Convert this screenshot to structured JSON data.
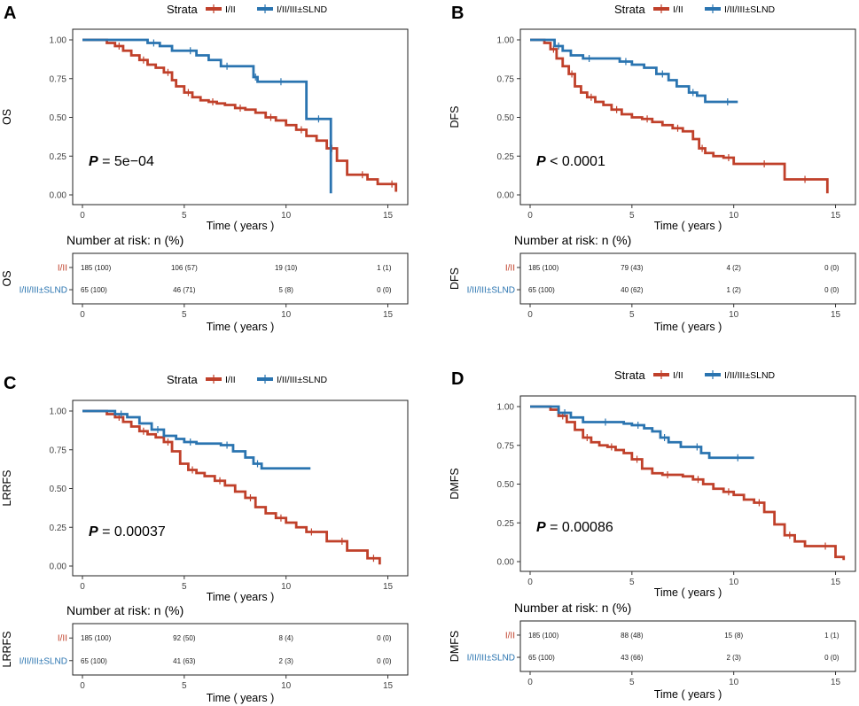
{
  "figure": {
    "series_colors": {
      "I/II": "#c0402a",
      "I/II/III±SLND": "#2a74b0"
    },
    "legend_title": "Strata",
    "x_ticks": [
      0,
      5,
      10,
      15
    ],
    "y_ticks": [
      "0.00",
      "0.25",
      "0.50",
      "0.75",
      "1.00"
    ],
    "risk_title": "Number at risk: n (%)"
  },
  "chart_data": [
    {
      "panel": "A",
      "type": "line",
      "ylabel": "OS",
      "xlabel": "Time ( years )",
      "xlim": [
        0,
        15.5
      ],
      "ylim": [
        0,
        1
      ],
      "legend": [
        "I/II",
        "I/II/III±SLND"
      ],
      "p_label": "P",
      "p_value": " = 5e−04",
      "series": [
        {
          "name": "I/II",
          "x": [
            0,
            1.2,
            1.6,
            2.0,
            2.4,
            2.8,
            3.2,
            3.6,
            4.0,
            4.4,
            4.6,
            5.0,
            5.4,
            5.8,
            6.2,
            6.6,
            7.0,
            7.5,
            8.0,
            8.5,
            9.0,
            9.5,
            10.0,
            10.5,
            11.0,
            11.5,
            12.0,
            12.5,
            13.0,
            13.5,
            14.0,
            14.5,
            15.0,
            15.4
          ],
          "y": [
            1.0,
            0.98,
            0.96,
            0.93,
            0.9,
            0.87,
            0.84,
            0.82,
            0.79,
            0.74,
            0.7,
            0.66,
            0.63,
            0.61,
            0.6,
            0.59,
            0.58,
            0.56,
            0.55,
            0.53,
            0.5,
            0.48,
            0.45,
            0.42,
            0.38,
            0.35,
            0.3,
            0.22,
            0.13,
            0.13,
            0.1,
            0.07,
            0.07,
            0.02
          ]
        },
        {
          "name": "I/II/III±SLND",
          "x": [
            0,
            2.6,
            3.2,
            3.8,
            4.4,
            5.0,
            5.6,
            6.2,
            6.8,
            7.4,
            8.0,
            8.4,
            8.6,
            9.0,
            9.5,
            10.0,
            10.5,
            11.0,
            12.2
          ],
          "y": [
            1.0,
            1.0,
            0.98,
            0.96,
            0.93,
            0.93,
            0.9,
            0.87,
            0.83,
            0.83,
            0.83,
            0.76,
            0.73,
            0.73,
            0.73,
            0.73,
            0.73,
            0.49,
            0.01
          ]
        }
      ],
      "risk_table": {
        "label": "OS",
        "rows": [
          {
            "name": "I/II",
            "values": [
              "185 (100)",
              "106 (57)",
              "19 (10)",
              "1 (1)"
            ]
          },
          {
            "name": "I/II/III±SLND",
            "values": [
              "65 (100)",
              "46 (71)",
              "5 (8)",
              "0 (0)"
            ]
          }
        ]
      }
    },
    {
      "panel": "B",
      "type": "line",
      "ylabel": "DFS",
      "xlabel": "Time ( years )",
      "xlim": [
        0,
        15.5
      ],
      "ylim": [
        0,
        1
      ],
      "legend": [
        "I/II",
        "I/II/III±SLND"
      ],
      "p_label": "P",
      "p_value": " < 0.0001",
      "series": [
        {
          "name": "I/II",
          "x": [
            0,
            0.7,
            1.0,
            1.3,
            1.6,
            1.9,
            2.2,
            2.5,
            2.8,
            3.2,
            3.6,
            4.0,
            4.5,
            5.0,
            5.5,
            6.0,
            6.5,
            7.0,
            7.5,
            8.0,
            8.3,
            8.6,
            9.0,
            9.5,
            10.0,
            10.5,
            11.0,
            12.0,
            12.5,
            13.0,
            14.0,
            14.6
          ],
          "y": [
            1.0,
            0.98,
            0.94,
            0.88,
            0.83,
            0.78,
            0.7,
            0.66,
            0.63,
            0.6,
            0.58,
            0.55,
            0.52,
            0.5,
            0.49,
            0.47,
            0.45,
            0.43,
            0.41,
            0.36,
            0.3,
            0.27,
            0.25,
            0.24,
            0.2,
            0.2,
            0.2,
            0.2,
            0.1,
            0.1,
            0.1,
            0.01
          ]
        },
        {
          "name": "I/II/III±SLND",
          "x": [
            0,
            0.8,
            1.2,
            1.6,
            2.0,
            2.6,
            3.2,
            3.8,
            4.4,
            5.0,
            5.6,
            6.2,
            6.8,
            7.2,
            7.8,
            8.2,
            8.6,
            9.2,
            10.2
          ],
          "y": [
            1.0,
            1.0,
            0.96,
            0.93,
            0.9,
            0.88,
            0.88,
            0.88,
            0.86,
            0.84,
            0.82,
            0.78,
            0.74,
            0.7,
            0.66,
            0.64,
            0.6,
            0.6,
            0.6
          ]
        }
      ],
      "risk_table": {
        "label": "DFS",
        "rows": [
          {
            "name": "I/II",
            "values": [
              "185 (100)",
              "79 (43)",
              "4 (2)",
              "0 (0)"
            ]
          },
          {
            "name": "I/II/III±SLND",
            "values": [
              "65 (100)",
              "40 (62)",
              "1 (2)",
              "0 (0)"
            ]
          }
        ]
      }
    },
    {
      "panel": "C",
      "type": "line",
      "ylabel": "LRRFS",
      "xlabel": "Time ( years )",
      "xlim": [
        0,
        15.5
      ],
      "ylim": [
        0,
        1
      ],
      "legend": [
        "I/II",
        "I/II/III±SLND"
      ],
      "p_label": "P",
      "p_value": " = 0.00037",
      "series": [
        {
          "name": "I/II",
          "x": [
            0,
            1.2,
            1.6,
            2.0,
            2.4,
            2.8,
            3.2,
            3.6,
            4.0,
            4.4,
            4.8,
            5.2,
            5.6,
            6.0,
            6.5,
            7.0,
            7.5,
            8.0,
            8.5,
            9.0,
            9.5,
            10.0,
            10.5,
            11.0,
            11.5,
            12.0,
            12.5,
            13.0,
            13.5,
            14.0,
            14.6
          ],
          "y": [
            1.0,
            0.98,
            0.96,
            0.93,
            0.9,
            0.87,
            0.85,
            0.83,
            0.8,
            0.74,
            0.66,
            0.62,
            0.6,
            0.58,
            0.55,
            0.52,
            0.48,
            0.44,
            0.38,
            0.34,
            0.31,
            0.28,
            0.25,
            0.22,
            0.22,
            0.16,
            0.16,
            0.1,
            0.1,
            0.05,
            0.01
          ]
        },
        {
          "name": "I/II/III±SLND",
          "x": [
            0,
            1.0,
            1.6,
            2.2,
            2.8,
            3.4,
            4.0,
            4.6,
            5.0,
            5.6,
            6.2,
            6.8,
            7.4,
            8.0,
            8.4,
            8.8,
            9.4,
            11.2
          ],
          "y": [
            1.0,
            1.0,
            0.98,
            0.96,
            0.92,
            0.88,
            0.84,
            0.82,
            0.8,
            0.79,
            0.79,
            0.78,
            0.74,
            0.7,
            0.66,
            0.63,
            0.63,
            0.63
          ]
        }
      ],
      "risk_table": {
        "label": "LRRFS",
        "rows": [
          {
            "name": "I/II",
            "values": [
              "185 (100)",
              "92 (50)",
              "8 (4)",
              "0 (0)"
            ]
          },
          {
            "name": "I/II/III±SLND",
            "values": [
              "65 (100)",
              "41 (63)",
              "2 (3)",
              "0 (0)"
            ]
          }
        ]
      }
    },
    {
      "panel": "D",
      "type": "line",
      "ylabel": "DMFS",
      "xlabel": "Time ( years )",
      "xlim": [
        0,
        15.5
      ],
      "ylim": [
        0,
        1
      ],
      "legend": [
        "I/II",
        "I/II/III±SLND"
      ],
      "p_label": "P",
      "p_value": " = 0.00086",
      "series": [
        {
          "name": "I/II",
          "x": [
            0,
            1.0,
            1.4,
            1.8,
            2.2,
            2.6,
            3.0,
            3.4,
            3.8,
            4.2,
            4.6,
            5.0,
            5.5,
            6.0,
            6.5,
            7.0,
            7.5,
            8.0,
            8.5,
            9.0,
            9.5,
            10.0,
            10.5,
            11.0,
            11.5,
            12.0,
            12.5,
            13.0,
            13.5,
            14.0,
            15.0,
            15.4
          ],
          "y": [
            1.0,
            0.98,
            0.94,
            0.9,
            0.85,
            0.8,
            0.77,
            0.75,
            0.74,
            0.72,
            0.7,
            0.66,
            0.6,
            0.57,
            0.56,
            0.56,
            0.55,
            0.53,
            0.5,
            0.47,
            0.45,
            0.43,
            0.4,
            0.38,
            0.32,
            0.24,
            0.17,
            0.13,
            0.1,
            0.1,
            0.03,
            0.01
          ]
        },
        {
          "name": "I/II/III±SLND",
          "x": [
            0,
            1.0,
            1.4,
            2.0,
            2.6,
            3.4,
            4.0,
            4.6,
            5.0,
            5.6,
            6.0,
            6.4,
            6.8,
            7.4,
            8.0,
            8.4,
            8.8,
            9.4,
            11.0
          ],
          "y": [
            1.0,
            1.0,
            0.96,
            0.93,
            0.9,
            0.9,
            0.9,
            0.89,
            0.88,
            0.86,
            0.84,
            0.8,
            0.77,
            0.74,
            0.74,
            0.7,
            0.67,
            0.67,
            0.67
          ]
        }
      ],
      "risk_table": {
        "label": "DMFS",
        "rows": [
          {
            "name": "I/II",
            "values": [
              "185 (100)",
              "88 (48)",
              "15 (8)",
              "1 (1)"
            ]
          },
          {
            "name": "I/II/III±SLND",
            "values": [
              "65 (100)",
              "43 (66)",
              "2 (3)",
              "0 (0)"
            ]
          }
        ]
      }
    }
  ]
}
